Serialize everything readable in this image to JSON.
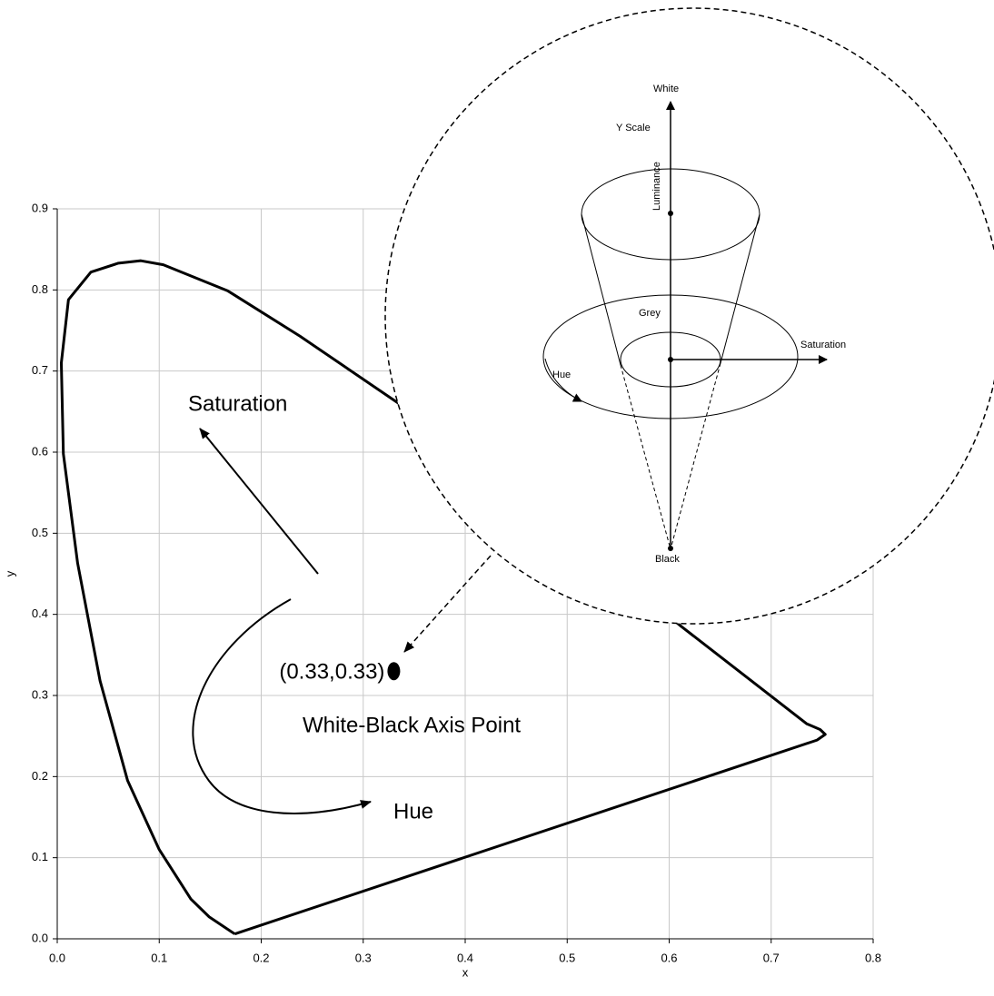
{
  "chart_data": {
    "type": "line",
    "x_label": "x",
    "y_label": "y",
    "x": [
      0.174,
      0.149,
      0.131,
      0.1,
      0.069,
      0.042,
      0.02,
      0.006,
      0.004,
      0.011,
      0.033,
      0.06,
      0.082,
      0.104,
      0.167,
      0.238,
      0.336,
      0.45,
      0.55,
      0.612,
      0.735,
      0.748,
      0.753,
      0.745,
      0.174
    ],
    "values": [
      0.006,
      0.027,
      0.049,
      0.11,
      0.195,
      0.318,
      0.463,
      0.598,
      0.71,
      0.788,
      0.822,
      0.833,
      0.836,
      0.831,
      0.799,
      0.743,
      0.659,
      0.55,
      0.45,
      0.385,
      0.265,
      0.258,
      0.252,
      0.245,
      0.006
    ],
    "color": "#000000",
    "xlim": [
      0,
      0.8
    ],
    "xticks": [
      {
        "value": 0,
        "label": "0.0"
      },
      0.1,
      0.2,
      0.3,
      0.4,
      0.5,
      0.6,
      0.7,
      0.8
    ],
    "ylim": [
      0,
      0.9
    ],
    "yticks": [
      {
        "value": 0,
        "label": "0.0"
      },
      0.1,
      0.2,
      0.3,
      0.4,
      0.5,
      0.6,
      0.7,
      0.8,
      0.9
    ],
    "grid": true,
    "point": {
      "x": 0.33,
      "y": 0.33,
      "label": "(0.33,0.33)"
    },
    "annotations": [
      "Saturation",
      "Hue",
      "White-Black Axis Point"
    ],
    "inset": {
      "labels": [
        "White",
        "Y Scale",
        "Luminance",
        "Grey",
        "Saturation",
        "Hue",
        "Black"
      ]
    }
  }
}
